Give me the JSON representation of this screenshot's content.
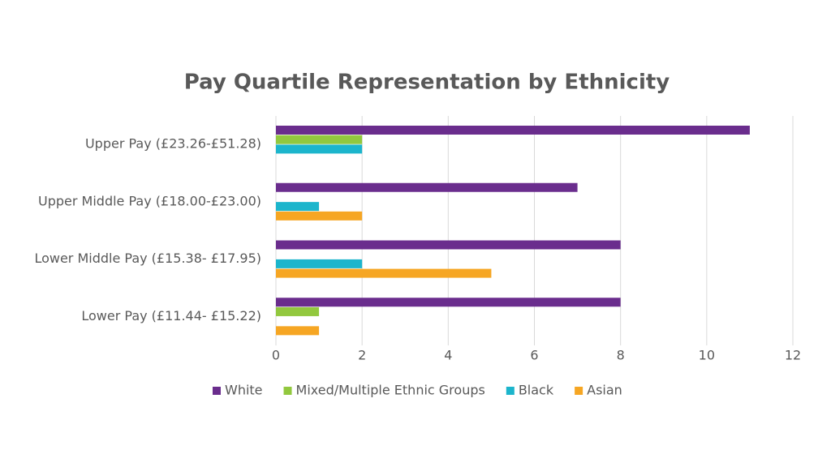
{
  "chart_data": {
    "type": "hbar",
    "title": "Pay Quartile Representation by Ethnicity",
    "categories": [
      "Upper Pay (£23.26-£51.28)",
      "Upper Middle Pay (£18.00-£23.00)",
      "Lower Middle Pay (£15.38- £17.95)",
      "Lower Pay (£11.44- £15.22)"
    ],
    "series": [
      {
        "name": "White",
        "color": "#6a2d8d",
        "values": [
          11,
          7,
          8,
          8
        ]
      },
      {
        "name": "Mixed/Multiple Ethnic Groups",
        "color": "#92c83e",
        "values": [
          2,
          0,
          0,
          1
        ]
      },
      {
        "name": "Black",
        "color": "#1cb5cc",
        "values": [
          2,
          1,
          2,
          0
        ]
      },
      {
        "name": "Asian",
        "color": "#f6a623",
        "values": [
          0,
          2,
          5,
          1
        ]
      }
    ],
    "xlim": [
      0,
      12
    ],
    "xticks": [
      0,
      2,
      4,
      6,
      8,
      10,
      12
    ],
    "grid": true,
    "legend": "bottom"
  }
}
